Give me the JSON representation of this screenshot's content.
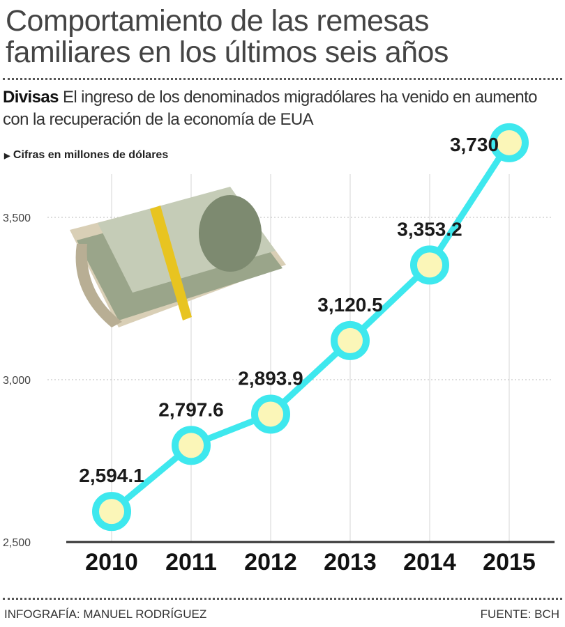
{
  "header": {
    "title_line1": "Comportamiento de las remesas",
    "title_line2": "familiares en los últimos seis años",
    "subtitle_bold": "Divisas",
    "subtitle_text": "El ingreso de los denominados migradólares ha venido en aumento con la recuperación de la economía de EUA",
    "units_note": "Cifras en millones de dólares"
  },
  "chart_data": {
    "type": "line",
    "categories": [
      "2010",
      "2011",
      "2012",
      "2013",
      "2014",
      "2015"
    ],
    "values": [
      2594.1,
      2797.6,
      2893.9,
      3120.5,
      3353.2,
      3730
    ],
    "data_labels": [
      "2,594.1",
      "2,797.6",
      "2,893.9",
      "3,120.5",
      "3,353.2",
      "3,730"
    ],
    "yticks": [
      2500,
      3000,
      3500
    ],
    "ytick_labels": [
      "2,500",
      "3,000",
      "3,500"
    ],
    "ylim": [
      2500,
      3500
    ],
    "grid": "vertical",
    "colors": {
      "line": "#3ee8ee",
      "marker_fill": "#fbf6b8",
      "axis": "#333333"
    }
  },
  "footer": {
    "credit": "INFOGRAFÍA: MANUEL RODRÍGUEZ",
    "source": "FUENTE: BCH"
  }
}
